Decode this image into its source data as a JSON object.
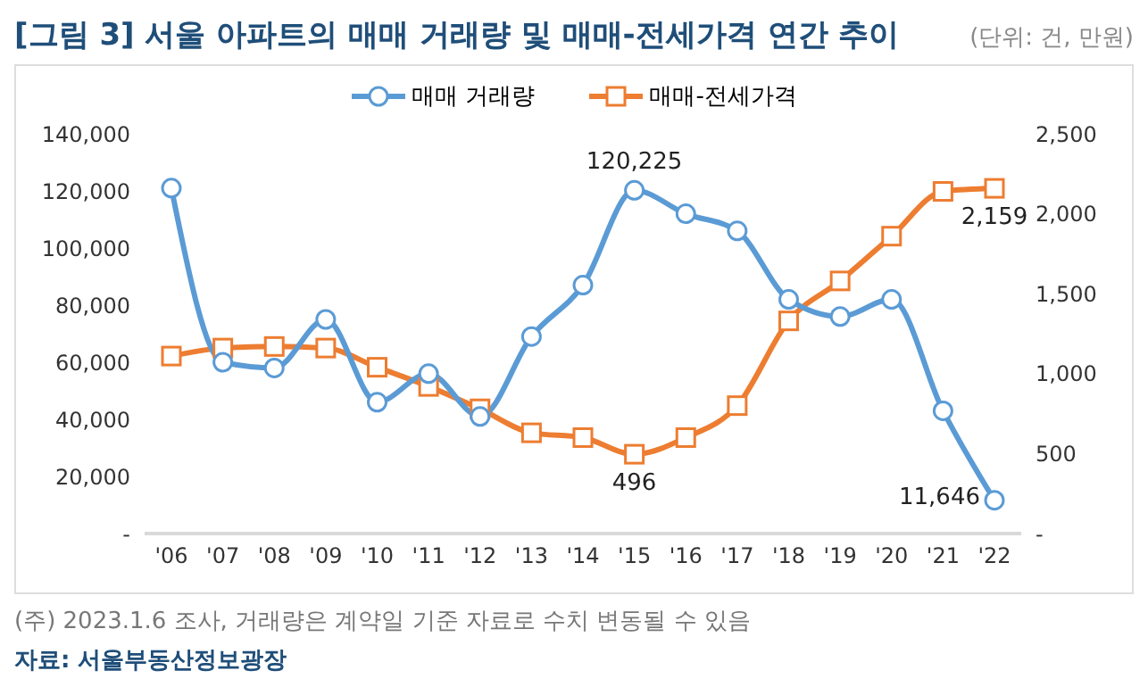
{
  "chart_data": {
    "type": "line",
    "title": "[그림 3] 서울 아파트의 매매 거래량 및 매매-전세가격 연간 추이",
    "annotations": [
      "(단위: 건, 만원)",
      "(주) 2023.1.6 조사, 거래량은 계약일 기준 자료로 수치 변동될 수 있음",
      "자료: 서울부동산정보광장"
    ],
    "categories": [
      "'06",
      "'07",
      "'08",
      "'09",
      "'10",
      "'11",
      "'12",
      "'13",
      "'14",
      "'15",
      "'16",
      "'17",
      "'18",
      "'19",
      "'20",
      "'21",
      "'22"
    ],
    "series": [
      {
        "name": "매매 거래량",
        "color": "#5b9bd5",
        "marker": "circle",
        "values": [
          121000,
          60000,
          58000,
          75000,
          46000,
          56000,
          41000,
          69000,
          87000,
          120225,
          112000,
          106000,
          82000,
          76000,
          82000,
          43000,
          11646
        ],
        "value_labels": [
          null,
          null,
          null,
          null,
          null,
          null,
          null,
          null,
          null,
          "120,225",
          null,
          null,
          null,
          null,
          null,
          null,
          "11,646"
        ]
      },
      {
        "name": "매매-전세가격",
        "color": "#ed7d31",
        "marker": "square",
        "axis": "y2",
        "values": [
          1110,
          1160,
          1170,
          1160,
          1040,
          920,
          780,
          630,
          600,
          496,
          600,
          800,
          1330,
          1580,
          1860,
          2140,
          2159
        ],
        "value_labels": [
          null,
          null,
          null,
          null,
          null,
          null,
          null,
          null,
          null,
          "496",
          null,
          null,
          null,
          null,
          null,
          null,
          "2,159"
        ]
      }
    ],
    "ylim": [
      0,
      140000
    ],
    "yticks": [
      {
        "value": 0,
        "label": "-"
      },
      {
        "value": 20000,
        "label": "20,000"
      },
      {
        "value": 40000,
        "label": "40,000"
      },
      {
        "value": 60000,
        "label": "60,000"
      },
      {
        "value": 80000,
        "label": "80,000"
      },
      {
        "value": 100000,
        "label": "100,000"
      },
      {
        "value": 120000,
        "label": "120,000"
      },
      {
        "value": 140000,
        "label": "140,000"
      }
    ],
    "y2lim": [
      0,
      2500
    ],
    "y2ticks": [
      {
        "value": 0,
        "label": "-"
      },
      500,
      {
        "value": 1000,
        "label": "1,000"
      },
      {
        "value": 1500,
        "label": "1,500"
      },
      {
        "value": 2000,
        "label": "2,000"
      },
      {
        "value": 2500,
        "label": "2,500"
      }
    ],
    "legend": "top",
    "grid": false
  }
}
